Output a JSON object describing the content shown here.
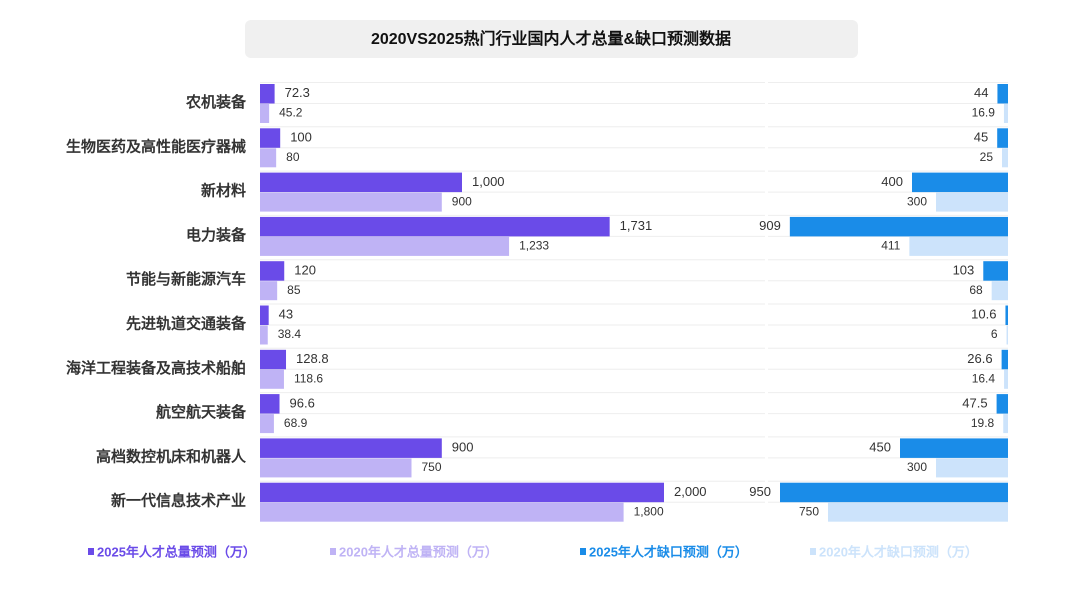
{
  "chart_data": {
    "type": "bar",
    "orientation": "horizontal",
    "title": "2020VS2025热门行业国内人才总量&缺口预测数据",
    "categories": [
      "农机装备",
      "生物医药及高性能医疗器械",
      "新材料",
      "电力装备",
      "节能与新能源汽车",
      "先进轨道交通装备",
      "海洋工程装备及高技术船舶",
      "航空航天装备",
      "高档数控机床和机器人",
      "新一代信息技术产业"
    ],
    "xlim": [
      0,
      2500
    ],
    "x2lim": [
      0,
      1000
    ],
    "series": [
      {
        "name": "2025年人才总量预测（万）",
        "color": "#6a4be8",
        "values": [
          72.3,
          100,
          1000,
          1731,
          120,
          43,
          128.8,
          96.6,
          900,
          2000
        ],
        "value_labels": [
          "72.3",
          "100",
          "1,000",
          "1,731",
          "120",
          "43",
          "128.8",
          "96.6",
          "900",
          "2,000"
        ]
      },
      {
        "name": "2020年人才总量预测（万）",
        "color": "#bfb3f5",
        "values": [
          45.2,
          80,
          900,
          1233,
          85,
          38.4,
          118.6,
          68.9,
          750,
          1800
        ],
        "value_labels": [
          "45.2",
          "80",
          "900",
          "1,233",
          "85",
          "38.4",
          "118.6",
          "68.9",
          "750",
          "1,800"
        ]
      },
      {
        "name": "2025年人才缺口预测（万）",
        "color": "#1a8ce8",
        "axis": "x2",
        "values": [
          44,
          45,
          400,
          909,
          103,
          10.6,
          26.6,
          47.5,
          450,
          950
        ]
      },
      {
        "name": "2020年人才缺口预测（万）",
        "color": "#cce3fb",
        "axis": "x2",
        "values": [
          16.9,
          25,
          300,
          411,
          68,
          6,
          16.4,
          19.8,
          300,
          750
        ]
      }
    ]
  }
}
